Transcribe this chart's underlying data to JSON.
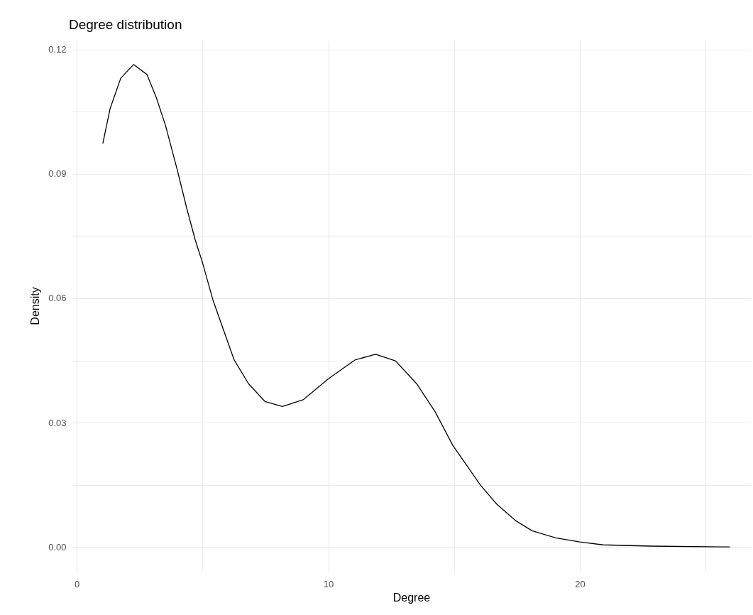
{
  "chart_data": {
    "type": "line",
    "title": "Degree distribution",
    "xlabel": "Degree",
    "ylabel": "Density",
    "series": [
      {
        "color": "#000000",
        "x": [
          1.04,
          1.33,
          1.75,
          2.26,
          2.79,
          3.16,
          3.53,
          4.0,
          4.37,
          4.71,
          5.0,
          5.42,
          6.26,
          6.83,
          7.48,
          8.18,
          9.0,
          10.01,
          11.06,
          11.88,
          12.67,
          13.51,
          14.25,
          14.95,
          16.05,
          16.7,
          17.46,
          18.1,
          19.04,
          20.0,
          20.93,
          22.8,
          25.95
        ],
        "values": [
          0.0974,
          0.1058,
          0.1131,
          0.1164,
          0.114,
          0.1085,
          0.1017,
          0.0909,
          0.0818,
          0.0741,
          0.0686,
          0.0595,
          0.0451,
          0.0394,
          0.0351,
          0.0339,
          0.0355,
          0.0406,
          0.0451,
          0.0465,
          0.0449,
          0.0394,
          0.0326,
          0.0245,
          0.0149,
          0.0103,
          0.0063,
          0.0039,
          0.0022,
          0.0012,
          0.0005,
          0.0002,
          0.0
        ]
      }
    ],
    "xlim": [
      -0.2,
      26.8
    ],
    "ylim": [
      -0.0058,
      0.1222
    ],
    "xticks": [
      0,
      {
        "value": 5,
        "label": null
      },
      10,
      {
        "value": 15,
        "label": null
      },
      20,
      {
        "value": 25,
        "label": null
      }
    ],
    "yticks": [
      {
        "value": 0,
        "label": "0.00"
      },
      {
        "value": 0.015,
        "label": null
      },
      0.03,
      {
        "value": 0.045,
        "label": null
      },
      0.06,
      {
        "value": 0.075,
        "label": null
      },
      0.09,
      {
        "value": 0.105,
        "label": null
      },
      0.12
    ],
    "grid": true,
    "line_style": "solid"
  }
}
